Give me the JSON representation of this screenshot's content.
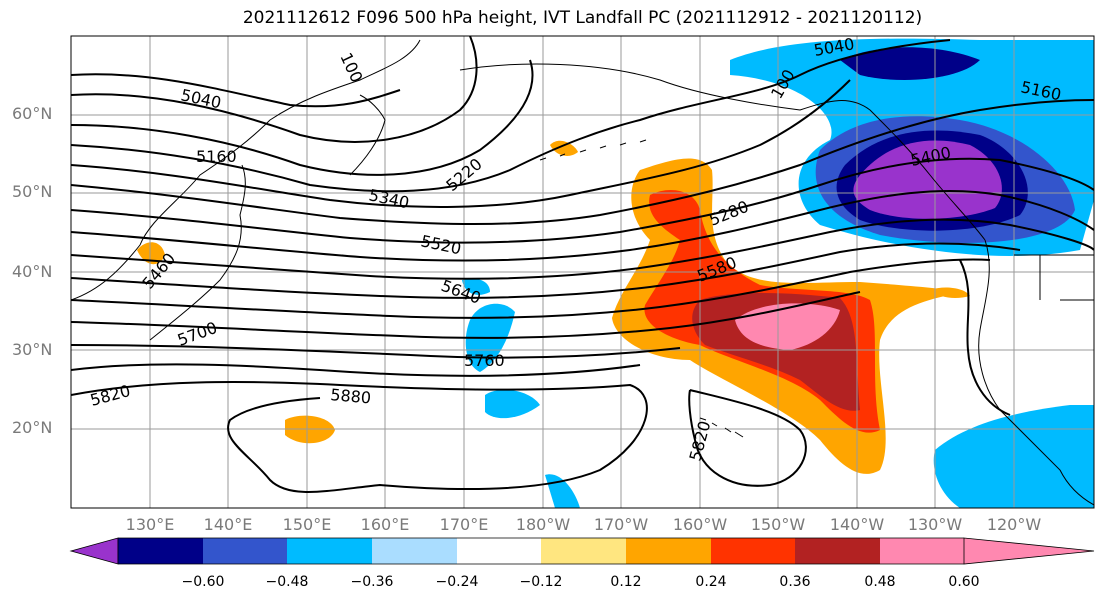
{
  "title": "2021112612 F096 500 hPa height, IVT Landfall PC (2021112912 - 2021120112)",
  "lat_labels": [
    "60°N",
    "50°N",
    "40°N",
    "30°N",
    "20°N"
  ],
  "lon_labels": [
    "130°E",
    "140°E",
    "150°E",
    "160°E",
    "170°E",
    "180°W",
    "170°W",
    "160°W",
    "150°W",
    "140°W",
    "130°W",
    "120°W"
  ],
  "contour_labels": [
    "5040",
    "5160",
    "5220",
    "5340",
    "5520",
    "5640",
    "5700",
    "5760",
    "5820",
    "5880",
    "5280",
    "5580",
    "5460",
    "100",
    "5400"
  ],
  "colorbar": {
    "ticks": [
      "−0.60",
      "−0.48",
      "−0.36",
      "−0.24",
      "−0.12",
      "0.12",
      "0.24",
      "0.36",
      "0.48",
      "0.60"
    ],
    "colors": [
      "#9933cc",
      "#000088",
      "#3355cc",
      "#00bbff",
      "#aaddff",
      "#ffffff",
      "#ffe680",
      "#ffa500",
      "#ff3300",
      "#b22222",
      "#ff88b0"
    ]
  }
}
